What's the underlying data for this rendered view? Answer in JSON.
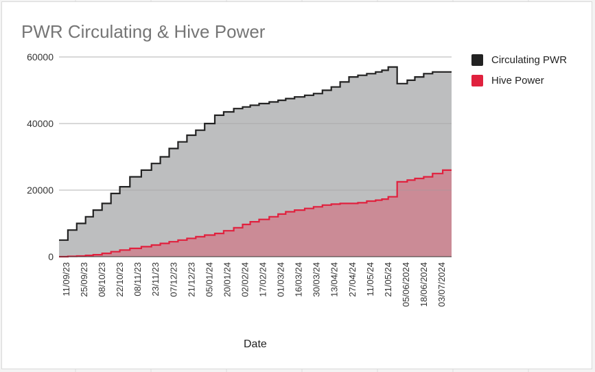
{
  "chart_data": {
    "type": "area",
    "title": "PWR Circulating & Hive Power",
    "xlabel": "Date",
    "ylabel": "",
    "ylim": [
      0,
      60000
    ],
    "yticks": [
      0,
      20000,
      40000,
      60000
    ],
    "grid": true,
    "legend_position": "right",
    "step": true,
    "x_tick_labels": [
      "11/09/23",
      "25/09/23",
      "08/10/23",
      "22/10/23",
      "08/11/23",
      "23/11/23",
      "07/12/23",
      "21/12/23",
      "05/01/24",
      "20/01/24",
      "02/02/24",
      "17/02/24",
      "01/03/24",
      "16/03/24",
      "30/03/24",
      "13/04/24",
      "27/04/24",
      "11/05/24",
      "21/05/24",
      "05/06/2024",
      "18/06/2024",
      "03/07/2024"
    ],
    "x": [
      "04/09/23",
      "11/09/23",
      "18/09/23",
      "25/09/23",
      "01/10/23",
      "08/10/23",
      "15/10/23",
      "22/10/23",
      "30/10/23",
      "08/11/23",
      "16/11/23",
      "23/11/23",
      "30/11/23",
      "07/12/23",
      "14/12/23",
      "21/12/23",
      "28/12/23",
      "05/01/24",
      "12/01/24",
      "20/01/24",
      "27/01/24",
      "02/02/24",
      "09/02/24",
      "17/02/24",
      "24/02/24",
      "01/03/24",
      "08/03/24",
      "16/03/24",
      "23/03/24",
      "30/03/24",
      "06/04/24",
      "13/04/24",
      "20/04/24",
      "27/04/24",
      "04/05/24",
      "11/05/24",
      "16/05/24",
      "21/05/24",
      "28/05/24",
      "05/06/2024",
      "11/06/2024",
      "18/06/2024",
      "25/06/2024",
      "03/07/2024",
      "10/07/2024"
    ],
    "series": [
      {
        "name": "Circulating PWR",
        "color": "#222222",
        "fill": "#bdbebf",
        "values": [
          5000,
          8000,
          10000,
          12000,
          14000,
          16000,
          19000,
          21000,
          24000,
          26000,
          28000,
          30000,
          32500,
          34500,
          36500,
          38000,
          40000,
          42500,
          43500,
          44500,
          45000,
          45500,
          46000,
          46500,
          47000,
          47500,
          48000,
          48500,
          49000,
          50000,
          51000,
          52500,
          54000,
          54500,
          55000,
          55500,
          56000,
          57000,
          52000,
          53000,
          54000,
          55000,
          55500,
          55500,
          55500
        ]
      },
      {
        "name": "Hive Power",
        "color": "#e0213e",
        "fill": "#cc8591",
        "values": [
          0,
          100,
          200,
          400,
          600,
          1000,
          1500,
          2000,
          2500,
          3000,
          3500,
          4000,
          4500,
          5000,
          5500,
          6000,
          6500,
          7000,
          7800,
          8700,
          9700,
          10500,
          11200,
          12000,
          12800,
          13500,
          14000,
          14500,
          15000,
          15500,
          15800,
          16000,
          16000,
          16200,
          16700,
          17000,
          17300,
          18000,
          22500,
          23000,
          23500,
          24000,
          25000,
          26000,
          26000
        ]
      }
    ]
  }
}
